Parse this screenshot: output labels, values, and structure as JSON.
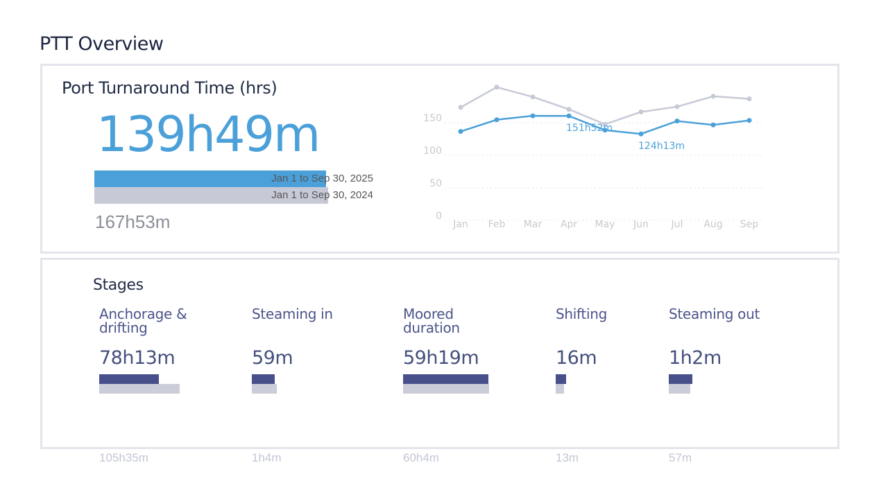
{
  "page_title": "PTT Overview",
  "ptt": {
    "title": "Port Turnaround Time (hrs)",
    "current_value": "139h49m",
    "current_period": "Jan 1 to Sep 30, 2025",
    "previous_period": "Jan 1 to Sep 30, 2024",
    "previous_value": "167h53m",
    "current_fraction": 0.83,
    "colors": {
      "current": "#4ba0d9",
      "previous": "#c7cad6"
    }
  },
  "chart_data": {
    "type": "line",
    "categories": [
      "Jan",
      "Feb",
      "Mar",
      "Apr",
      "May",
      "Jun",
      "Jul",
      "Aug",
      "Sep"
    ],
    "y_ticks": [
      "0",
      "50",
      "100",
      "150"
    ],
    "ylim": [
      0,
      200
    ],
    "grid": true,
    "series": [
      {
        "values": [
          128,
          146,
          152,
          151.87,
          130,
          124.22,
          144,
          138,
          145
        ],
        "color": "#4ba0d9"
      },
      {
        "values": [
          165,
          196,
          181,
          162,
          139,
          158,
          166,
          182,
          178
        ],
        "color": "#c7cad6"
      }
    ],
    "annotations": [
      {
        "index": 3,
        "text": "151h52m"
      },
      {
        "index": 5,
        "text": "124h13m"
      }
    ]
  },
  "stages": {
    "title": "Stages",
    "items": [
      {
        "name": "Anchorage & drifting",
        "value": "78h13m",
        "previous": "105h35m",
        "ratio": 0.74
      },
      {
        "name": "Steaming in",
        "value": "59m",
        "previous": "1h4m",
        "ratio": 0.92
      },
      {
        "name": "Moored duration",
        "value": "59h19m",
        "previous": "60h4m",
        "ratio": 0.99
      },
      {
        "name": "Shifting",
        "value": "16m",
        "previous": "13m",
        "ratio": 1.23
      },
      {
        "name": "Steaming out",
        "value": "1h2m",
        "previous": "57m",
        "ratio": 1.09
      }
    ],
    "colors": {
      "current": "#47508a",
      "previous": "#cbcdd9"
    }
  }
}
